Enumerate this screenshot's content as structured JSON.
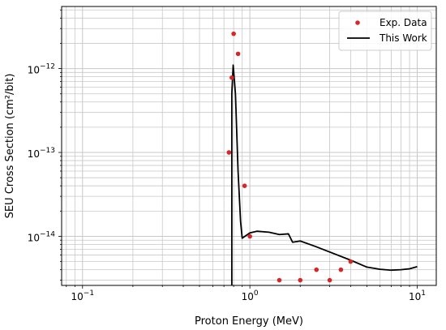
{
  "chart_data": {
    "type": "scatter",
    "title": "",
    "xlabel": "Proton Energy (MeV)",
    "ylabel": "SEU Cross Section (cm²/bit)",
    "xscale": "log",
    "yscale": "log",
    "xlim": [
      0.075,
      13
    ],
    "ylim": [
      2.6e-15,
      5.5e-12
    ],
    "grid": true,
    "legend_position": "top-right",
    "x_ticks": [
      {
        "value": 0.1,
        "base": "10",
        "exp": "−1"
      },
      {
        "value": 1,
        "base": "10",
        "exp": "0"
      },
      {
        "value": 10,
        "base": "10",
        "exp": "1"
      }
    ],
    "y_ticks": [
      {
        "value": 1e-14,
        "base": "10",
        "exp": "−14"
      },
      {
        "value": 1e-13,
        "base": "10",
        "exp": "−13"
      },
      {
        "value": 1e-12,
        "base": "10",
        "exp": "−12"
      }
    ],
    "series": [
      {
        "name": "Exp. Data",
        "kind": "scatter",
        "color": "#d62728",
        "points": [
          {
            "x": 0.75,
            "y": 1e-13
          },
          {
            "x": 0.78,
            "y": 7.8e-13
          },
          {
            "x": 0.8,
            "y": 2.6e-12
          },
          {
            "x": 0.85,
            "y": 1.5e-12
          },
          {
            "x": 0.93,
            "y": 4e-14
          },
          {
            "x": 1.0,
            "y": 1e-14
          },
          {
            "x": 1.5,
            "y": 3e-15
          },
          {
            "x": 2.0,
            "y": 3e-15
          },
          {
            "x": 2.5,
            "y": 4e-15
          },
          {
            "x": 3.0,
            "y": 3e-15
          },
          {
            "x": 3.5,
            "y": 4e-15
          },
          {
            "x": 4.0,
            "y": 5e-15
          }
        ]
      },
      {
        "name": "This Work",
        "kind": "line",
        "color": "#000000",
        "points": [
          {
            "x": 0.78,
            "y": 2.6e-15
          },
          {
            "x": 0.78,
            "y": 5e-13
          },
          {
            "x": 0.795,
            "y": 1.1e-12
          },
          {
            "x": 0.82,
            "y": 5e-13
          },
          {
            "x": 0.85,
            "y": 6e-14
          },
          {
            "x": 0.88,
            "y": 1.5e-14
          },
          {
            "x": 0.9,
            "y": 9.5e-15
          },
          {
            "x": 1.0,
            "y": 1.1e-14
          },
          {
            "x": 1.1,
            "y": 1.15e-14
          },
          {
            "x": 1.3,
            "y": 1.12e-14
          },
          {
            "x": 1.5,
            "y": 1.05e-14
          },
          {
            "x": 1.7,
            "y": 1.07e-14
          },
          {
            "x": 1.8,
            "y": 8.5e-15
          },
          {
            "x": 2.0,
            "y": 8.8e-15
          },
          {
            "x": 2.5,
            "y": 7.5e-15
          },
          {
            "x": 3.0,
            "y": 6.5e-15
          },
          {
            "x": 4.0,
            "y": 5.2e-15
          },
          {
            "x": 5.0,
            "y": 4.3e-15
          },
          {
            "x": 6.0,
            "y": 4.05e-15
          },
          {
            "x": 7.0,
            "y": 3.95e-15
          },
          {
            "x": 8.0,
            "y": 4e-15
          },
          {
            "x": 9.0,
            "y": 4.1e-15
          },
          {
            "x": 10.0,
            "y": 4.35e-15
          }
        ]
      }
    ]
  }
}
